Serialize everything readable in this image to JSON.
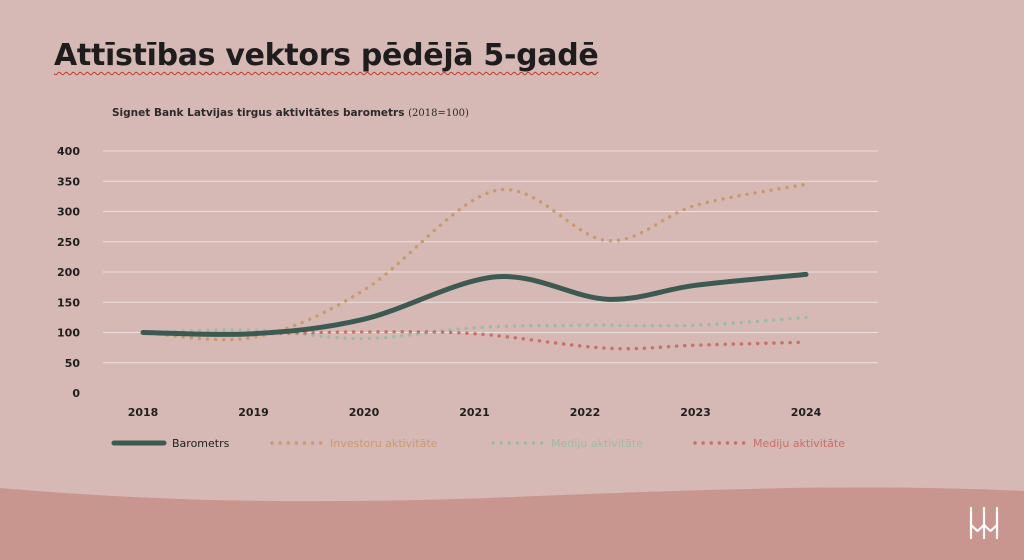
{
  "slide": {
    "title": "Attīstības vektors pēdējā 5-gadē",
    "subtitle_main": "Signet Bank Latvijas tirgus aktivitātes barometrs",
    "subtitle_note": "(2018=100)"
  },
  "logo": {
    "icon": "signet-bank-logo-icon"
  },
  "colors": {
    "background": "#d6b9b4",
    "bottom_band": "#c9958f",
    "gridline": "#ece0de",
    "barometrs": "#3c5a52",
    "investoru": "#c99a6e",
    "mediju_green": "#9fbaa6",
    "mediju_red": "#c77068"
  },
  "chart_data": {
    "type": "line",
    "title": "Signet Bank Latvijas tirgus aktivitātes barometrs (2018=100)",
    "x": [
      "2018",
      "2019",
      "2020",
      "2021",
      "2022",
      "2023",
      "2024"
    ],
    "y_ticks": [
      "0",
      "50",
      "100",
      "150",
      "200",
      "250",
      "300",
      "350",
      "400"
    ],
    "ylim": [
      0,
      400
    ],
    "grid": true,
    "legend_position": "bottom",
    "series": [
      {
        "name": "Barometrs",
        "style": "solid",
        "color": "#3c5a52",
        "points": [
          [
            2018,
            100
          ],
          [
            2019,
            98
          ],
          [
            2020,
            122
          ],
          [
            2021.2,
            192
          ],
          [
            2022.2,
            155
          ],
          [
            2023,
            178
          ],
          [
            2024,
            196
          ]
        ]
      },
      {
        "name": "Investoru aktivitāte",
        "style": "dotted",
        "color": "#c99a6e",
        "points": [
          [
            2018,
            100
          ],
          [
            2019,
            92
          ],
          [
            2020,
            170
          ],
          [
            2021.2,
            335
          ],
          [
            2022.2,
            252
          ],
          [
            2023,
            310
          ],
          [
            2024,
            345
          ]
        ]
      },
      {
        "name": "Mediju aktivitāte",
        "style": "dotted",
        "color": "#9fbaa6",
        "points": [
          [
            2018,
            100
          ],
          [
            2019,
            104
          ],
          [
            2020,
            90
          ],
          [
            2021,
            108
          ],
          [
            2022,
            112
          ],
          [
            2023,
            112
          ],
          [
            2024,
            125
          ]
        ]
      },
      {
        "name": "Mediju aktivitāte",
        "style": "dotted",
        "color": "#c77068",
        "points": [
          [
            2018,
            100
          ],
          [
            2019,
            98
          ],
          [
            2020,
            101
          ],
          [
            2021,
            98
          ],
          [
            2022.2,
            74
          ],
          [
            2023,
            79
          ],
          [
            2024,
            84
          ]
        ]
      }
    ]
  }
}
